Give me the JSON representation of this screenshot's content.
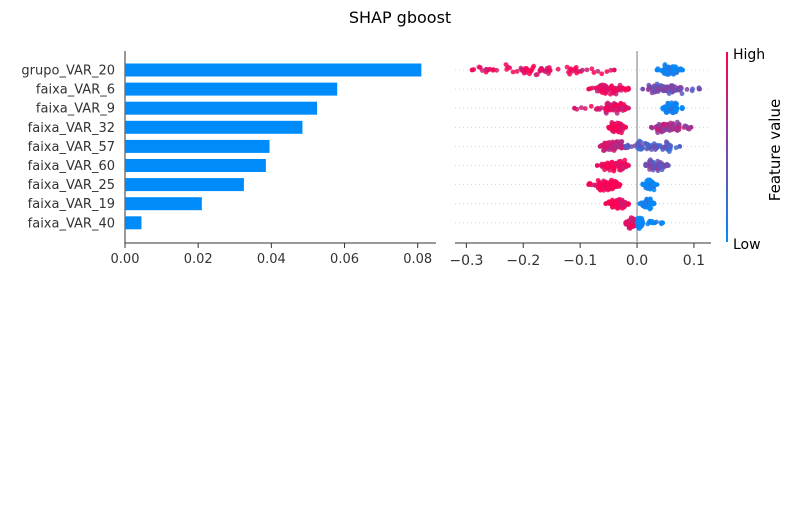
{
  "chart_data": {
    "title": "SHAP gboost",
    "features": [
      "grupo_VAR_20",
      "faixa_VAR_6",
      "faixa_VAR_9",
      "faixa_VAR_32",
      "faixa_VAR_57",
      "faixa_VAR_60",
      "faixa_VAR_25",
      "faixa_VAR_19",
      "faixa_VAR_40"
    ],
    "bar": {
      "type": "bar",
      "orientation": "horizontal",
      "values": [
        0.081,
        0.058,
        0.0525,
        0.0485,
        0.0395,
        0.0385,
        0.0325,
        0.021,
        0.0045
      ],
      "xlim": [
        0,
        0.085
      ],
      "xticks": [
        0,
        0.02,
        0.04,
        0.06,
        0.08
      ],
      "xtick_labels": [
        "0.00",
        "0.02",
        "0.04",
        "0.06",
        "0.08"
      ],
      "color": "#008bfb"
    },
    "beeswarm": {
      "type": "scatter",
      "xlim": [
        -0.32,
        0.13
      ],
      "xticks": [
        -0.3,
        -0.2,
        -0.1,
        0,
        0.1
      ],
      "xtick_labels": [
        "−0.3",
        "−0.2",
        "−0.1",
        "0.0",
        "0.1"
      ],
      "groups": [
        {
          "feature": "grupo_VAR_20",
          "negative": {
            "range": [
              -0.29,
              -0.04
            ],
            "dense": [
              -0.28,
              -0.06
            ],
            "level": 0.92
          },
          "positive": {
            "range": [
              0.035,
              0.08
            ],
            "dense": [
              0.045,
              0.07
            ],
            "level": 0.03
          }
        },
        {
          "feature": "faixa_VAR_6",
          "negative": {
            "range": [
              -0.085,
              -0.015
            ],
            "dense": [
              -0.07,
              -0.02
            ],
            "level": 0.95
          },
          "positive": {
            "range": [
              0.01,
              0.11
            ],
            "dense": [
              0.02,
              0.08
            ],
            "level": 0.45
          }
        },
        {
          "feature": "faixa_VAR_9",
          "negative": {
            "range": [
              -0.11,
              -0.015
            ],
            "dense": [
              -0.055,
              -0.02
            ],
            "level": 0.85
          },
          "positive": {
            "range": [
              0.045,
              0.08
            ],
            "dense": [
              0.05,
              0.07
            ],
            "level": 0.02
          }
        },
        {
          "feature": "faixa_VAR_32",
          "negative": {
            "range": [
              -0.05,
              -0.02
            ],
            "dense": [
              -0.045,
              -0.025
            ],
            "level": 0.97
          },
          "positive": {
            "range": [
              0.025,
              0.095
            ],
            "dense": [
              0.035,
              0.075
            ],
            "level": 0.65
          }
        },
        {
          "feature": "faixa_VAR_57",
          "negative": {
            "range": [
              -0.065,
              -0.015
            ],
            "dense": [
              -0.06,
              -0.025
            ],
            "level": 0.8
          },
          "positive": {
            "range": [
              -0.02,
              0.075
            ],
            "dense": [
              0,
              0.06
            ],
            "level": 0.3
          }
        },
        {
          "feature": "faixa_VAR_60",
          "negative": {
            "range": [
              -0.07,
              -0.015
            ],
            "dense": [
              -0.06,
              -0.02
            ],
            "level": 0.9
          },
          "positive": {
            "range": [
              0.015,
              0.055
            ],
            "dense": [
              0.02,
              0.045
            ],
            "level": 0.4
          }
        },
        {
          "feature": "faixa_VAR_25",
          "negative": {
            "range": [
              -0.085,
              -0.03
            ],
            "dense": [
              -0.07,
              -0.035
            ],
            "level": 0.98
          },
          "positive": {
            "range": [
              0.01,
              0.035
            ],
            "dense": [
              0.015,
              0.03
            ],
            "level": 0.02
          }
        },
        {
          "feature": "faixa_VAR_19",
          "negative": {
            "range": [
              -0.055,
              -0.015
            ],
            "dense": [
              -0.045,
              -0.02
            ],
            "level": 0.95
          },
          "positive": {
            "range": [
              0.005,
              0.03
            ],
            "dense": [
              0.008,
              0.025
            ],
            "level": 0.03
          }
        },
        {
          "feature": "faixa_VAR_40",
          "negative": {
            "range": [
              -0.02,
              0
            ],
            "dense": [
              -0.015,
              -0.002
            ],
            "level": 0.9
          },
          "positive": {
            "range": [
              0,
              0.045
            ],
            "dense": [
              0.001,
              0.01
            ],
            "level": 0.02
          }
        }
      ]
    },
    "colorbar": {
      "label": "Feature value",
      "high_label": "High",
      "low_label": "Low",
      "low_color": "#008bfb",
      "high_color": "#ff0052"
    },
    "grid": false
  }
}
